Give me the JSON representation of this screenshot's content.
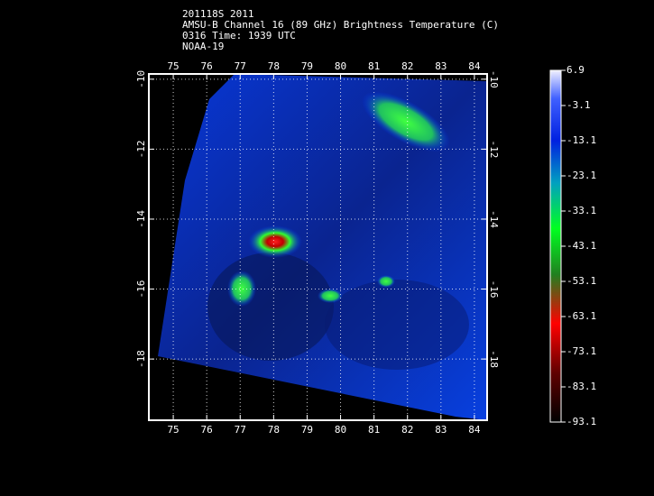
{
  "header": {
    "lines": [
      "201118S 2011",
      "AMSU-B Channel 16 (89 GHz) Brightness Temperature (C)",
      "0316 Time: 1939 UTC",
      "NOAA-19"
    ]
  },
  "map": {
    "lon_range": [
      74.27,
      84.38
    ],
    "lat_range": [
      -9.85,
      -19.75
    ],
    "lon_ticks": [
      75,
      76,
      77,
      78,
      79,
      80,
      81,
      82,
      83,
      84
    ],
    "lat_ticks": [
      -10,
      -12,
      -14,
      -16,
      -18
    ]
  },
  "colorbar": {
    "range": [
      -93.1,
      6.9
    ],
    "labels": [
      6.9,
      -3.1,
      -13.1,
      -23.1,
      -33.1,
      -43.1,
      -53.1,
      -63.1,
      -73.1,
      -83.1,
      -93.1
    ]
  }
}
